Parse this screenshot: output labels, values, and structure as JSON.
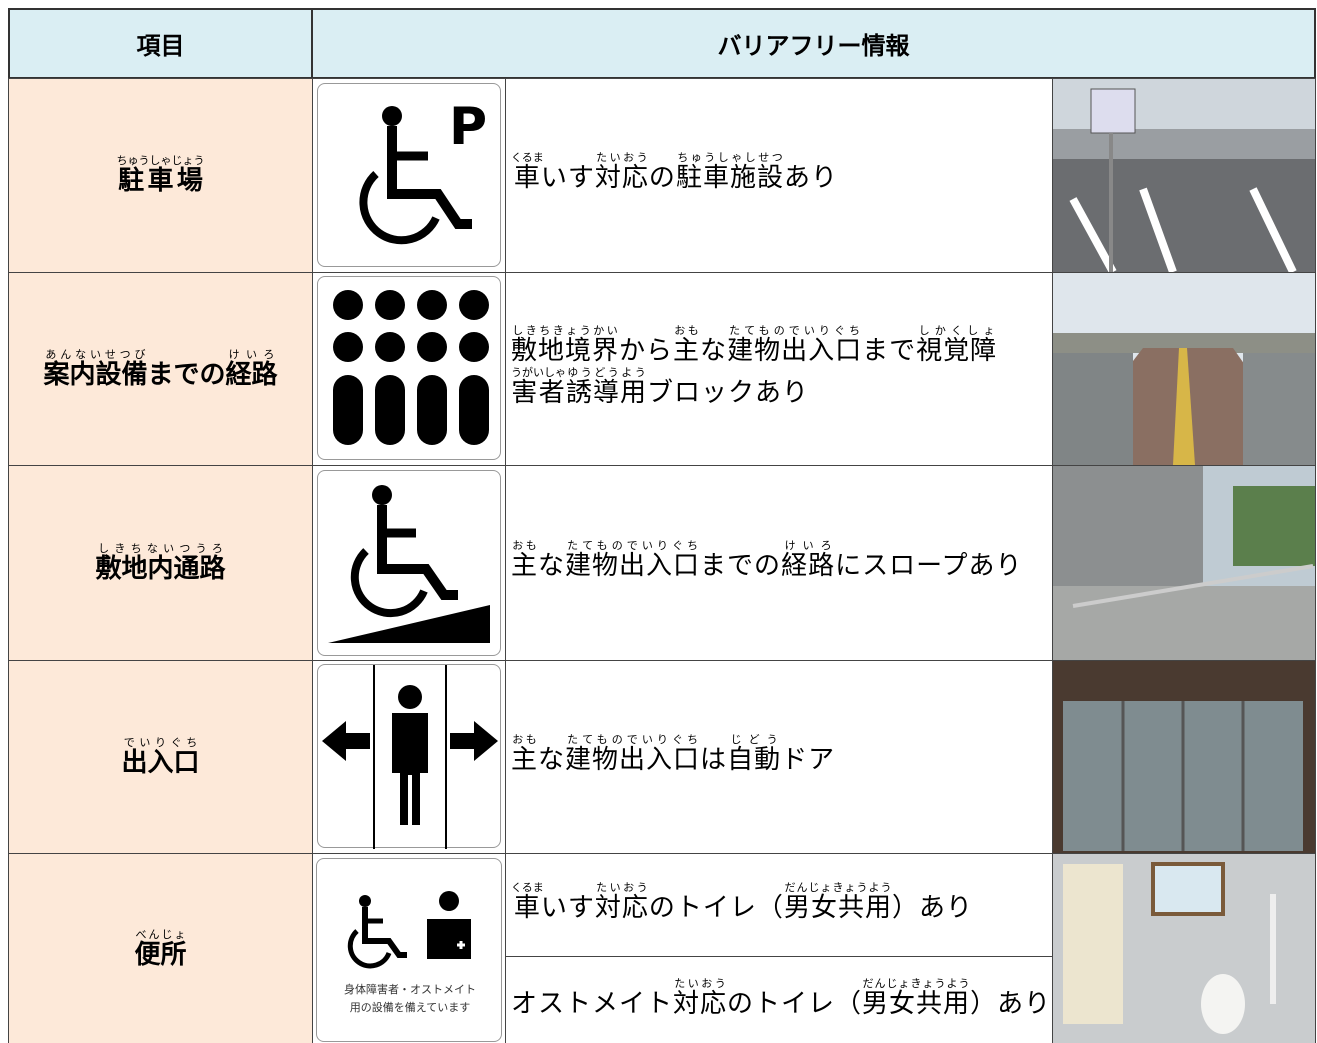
{
  "header": {
    "item": "項目",
    "info": "バリアフリー情報"
  },
  "rows": [
    {
      "item": [
        {
          "base": "駐車場",
          "ruby": "ちゅうしゃじょう"
        }
      ],
      "descriptions": [
        [
          {
            "base": "車",
            "ruby": "くるま"
          },
          {
            "base": "いす"
          },
          {
            "base": "対応",
            "ruby": "たいおう"
          },
          {
            "base": "の"
          },
          {
            "base": "駐車施設",
            "ruby": "ちゅうしゃしせつ"
          },
          {
            "base": "あり"
          }
        ]
      ]
    },
    {
      "item": [
        {
          "base": "案内設備",
          "ruby": "あんないせつび"
        },
        {
          "base": "までの"
        },
        {
          "base": "経路",
          "ruby": "けいろ"
        }
      ],
      "descriptions": [
        [
          {
            "base": "敷地境界",
            "ruby": "しきちきょうかい"
          },
          {
            "base": "から"
          },
          {
            "base": "主",
            "ruby": "おも"
          },
          {
            "base": "な"
          },
          {
            "base": "建物出入口",
            "ruby": "たてものでいりぐち"
          },
          {
            "base": "まで"
          },
          {
            "base": "視覚障",
            "ruby": "しかくしょ"
          },
          {
            "base": "害者",
            "ruby": "うがいしゃ"
          },
          {
            "base": "誘導用",
            "ruby": "ゆうどうよう"
          },
          {
            "base": "ブロックあり"
          }
        ]
      ]
    },
    {
      "item": [
        {
          "base": "敷地内通路",
          "ruby": "しきちないつうろ"
        }
      ],
      "descriptions": [
        [
          {
            "base": "主",
            "ruby": "おも"
          },
          {
            "base": "な"
          },
          {
            "base": "建物出入口",
            "ruby": "たてものでいりぐち"
          },
          {
            "base": "までの"
          },
          {
            "base": "経路",
            "ruby": "けいろ"
          },
          {
            "base": "にスロープあり"
          }
        ]
      ]
    },
    {
      "item": [
        {
          "base": "出入口",
          "ruby": "でいりぐち"
        }
      ],
      "descriptions": [
        [
          {
            "base": "主",
            "ruby": "おも"
          },
          {
            "base": "な"
          },
          {
            "base": "建物出入口",
            "ruby": "たてものでいりぐち"
          },
          {
            "base": "は"
          },
          {
            "base": "自動",
            "ruby": "じどう"
          },
          {
            "base": "ドア"
          }
        ]
      ]
    },
    {
      "item": [
        {
          "base": "便所",
          "ruby": "べんじょ"
        }
      ],
      "descriptions": [
        [
          {
            "base": "車",
            "ruby": "くるま"
          },
          {
            "base": "いす"
          },
          {
            "base": "対応",
            "ruby": "たいおう"
          },
          {
            "base": "のトイレ（"
          },
          {
            "base": "男女共用",
            "ruby": "だんじょきょうよう"
          },
          {
            "base": "）あり"
          }
        ],
        [
          {
            "base": "オストメイト"
          },
          {
            "base": "対応",
            "ruby": "たいおう"
          },
          {
            "base": "のトイレ（"
          },
          {
            "base": "男女共用",
            "ruby": "だんじょきょうよう"
          },
          {
            "base": "）あり"
          }
        ]
      ]
    }
  ],
  "icon_caption": [
    "身体障害者・オストメイト",
    "用の設備を備えています"
  ]
}
